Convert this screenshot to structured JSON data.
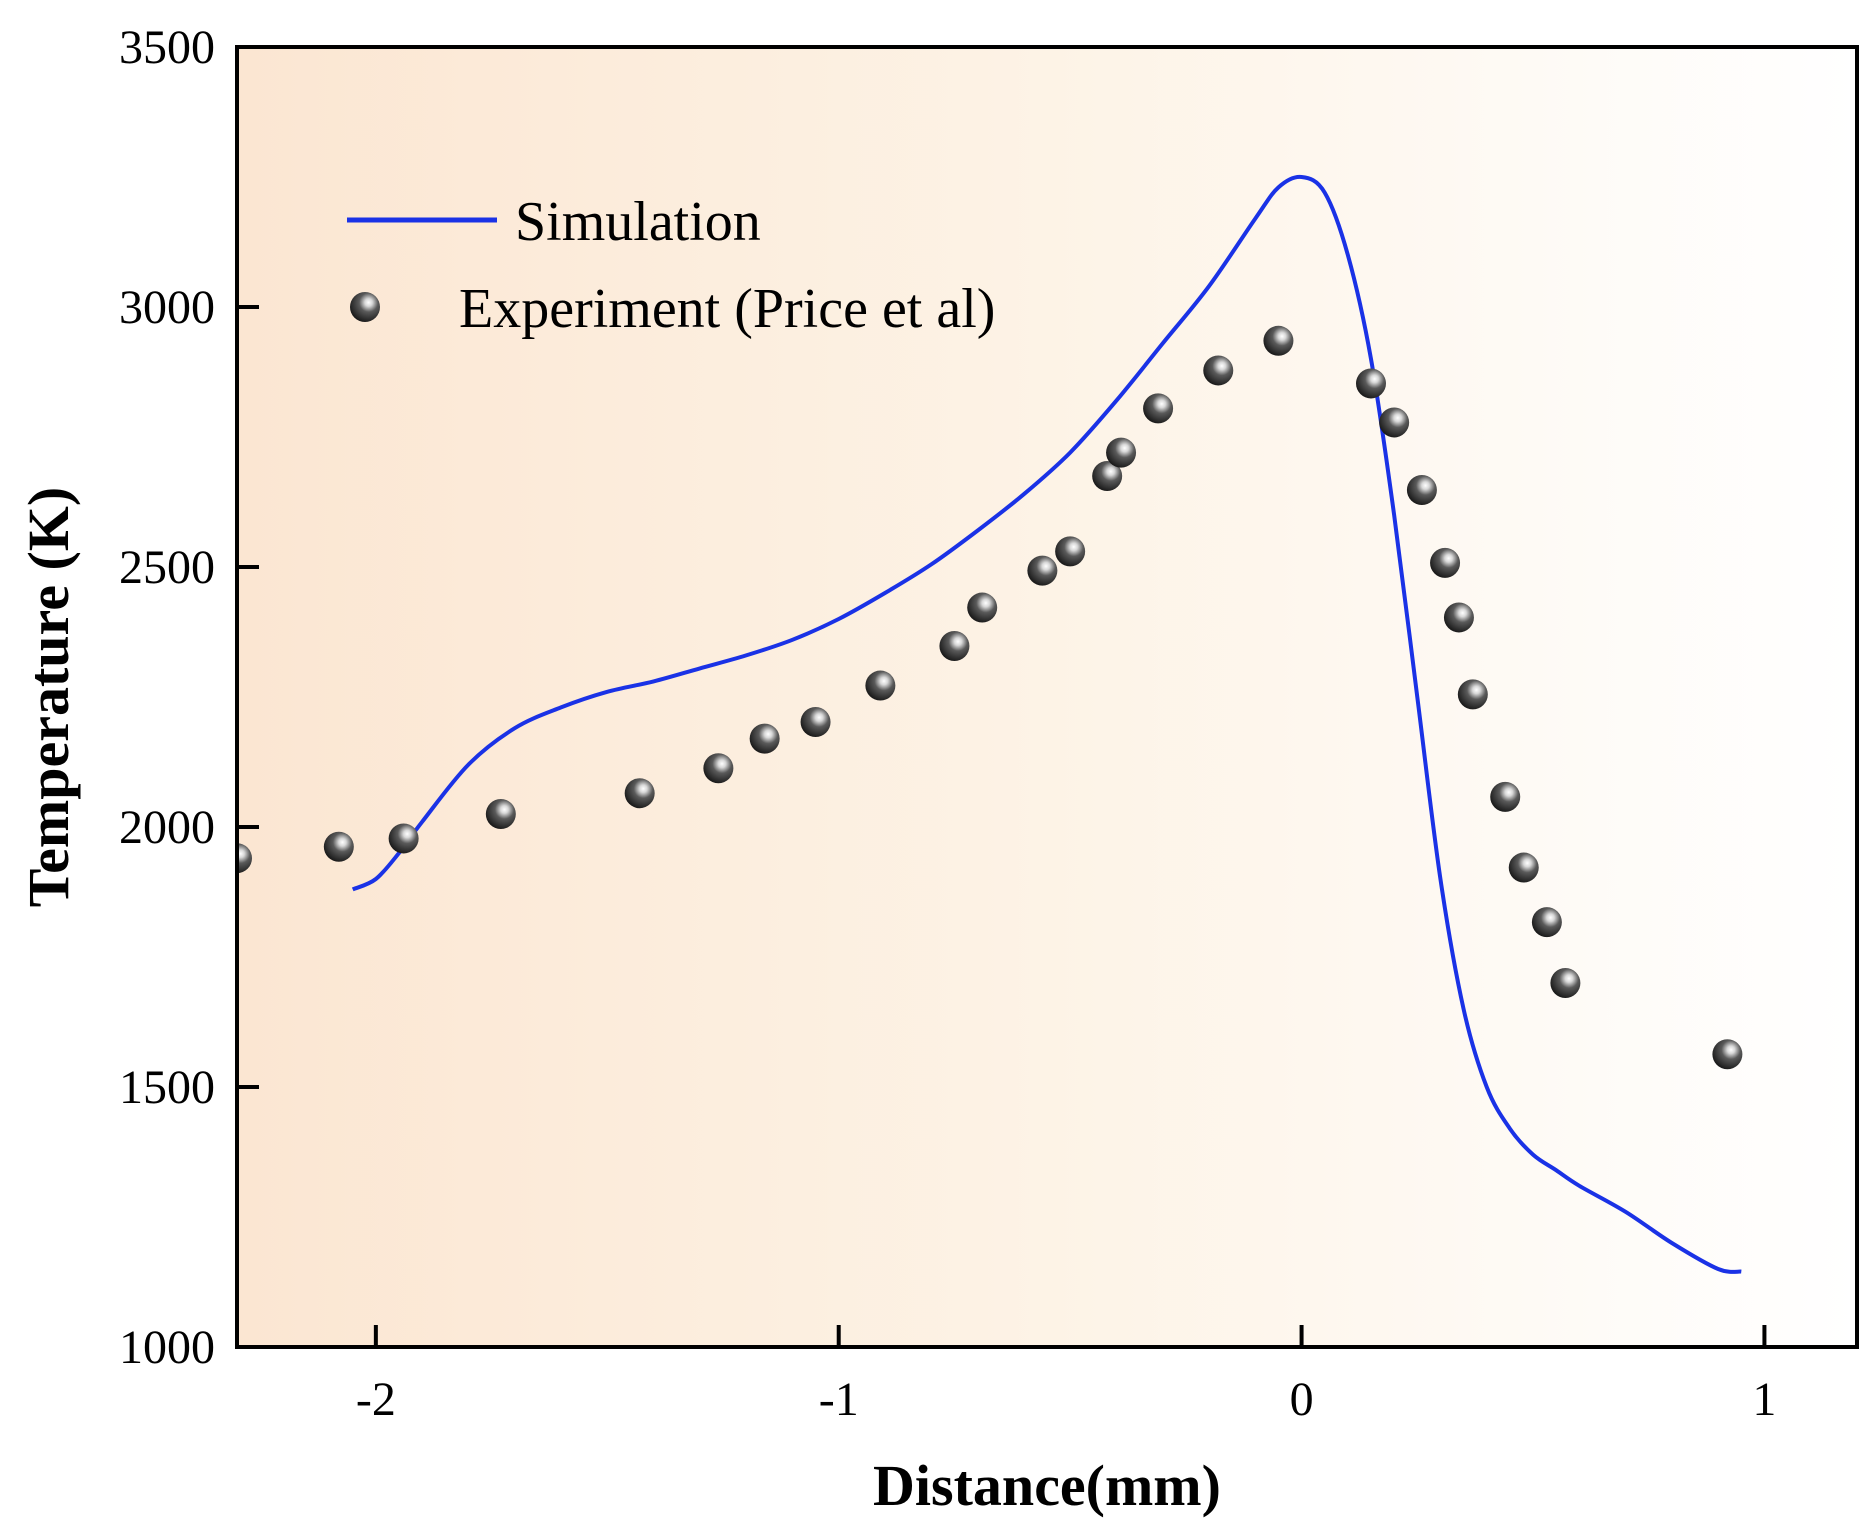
{
  "chart_data": {
    "type": "line",
    "title": "",
    "xlabel": "Distance(mm)",
    "ylabel": "Temperature (K)",
    "xlim": [
      -2.3,
      1.2
    ],
    "ylim": [
      1000,
      3500
    ],
    "xticks": [
      -2,
      -1,
      0,
      1
    ],
    "yticks": [
      1000,
      1500,
      2000,
      2500,
      3000,
      3500
    ],
    "grid": false,
    "legend_position": "top-left",
    "background_gradient": [
      "#fbe6d2",
      "#fdf3e6",
      "#ffffff"
    ],
    "series": [
      {
        "name": "Simulation",
        "kind": "line",
        "color": "#1a32e6",
        "x": [
          -2.05,
          -2.0,
          -1.95,
          -1.9,
          -1.8,
          -1.7,
          -1.6,
          -1.5,
          -1.4,
          -1.3,
          -1.2,
          -1.1,
          -1.0,
          -0.9,
          -0.8,
          -0.7,
          -0.6,
          -0.5,
          -0.4,
          -0.3,
          -0.2,
          -0.1,
          -0.05,
          0.0,
          0.05,
          0.1,
          0.15,
          0.2,
          0.25,
          0.3,
          0.35,
          0.4,
          0.45,
          0.5,
          0.55,
          0.6,
          0.7,
          0.8,
          0.9,
          0.95
        ],
        "y": [
          1880,
          1900,
          1950,
          2010,
          2120,
          2190,
          2230,
          2260,
          2280,
          2305,
          2330,
          2360,
          2400,
          2450,
          2505,
          2570,
          2640,
          2720,
          2820,
          2930,
          3040,
          3170,
          3230,
          3250,
          3220,
          3100,
          2900,
          2600,
          2250,
          1900,
          1650,
          1500,
          1420,
          1370,
          1340,
          1310,
          1260,
          1200,
          1150,
          1145
        ]
      },
      {
        "name": "Experiment (Price et al)",
        "kind": "scatter",
        "color": "#3a3a3a",
        "x": [
          -2.3,
          -2.08,
          -1.94,
          -1.73,
          -1.43,
          -1.26,
          -1.16,
          -1.05,
          -0.91,
          -0.75,
          -0.69,
          -0.56,
          -0.5,
          -0.42,
          -0.39,
          -0.31,
          -0.18,
          -0.05,
          0.15,
          0.2,
          0.26,
          0.31,
          0.34,
          0.37,
          0.44,
          0.48,
          0.53,
          0.57,
          0.92
        ],
        "y": [
          1940,
          1962,
          1978,
          2025,
          2065,
          2113,
          2170,
          2202,
          2272,
          2348,
          2422,
          2493,
          2530,
          2675,
          2720,
          2805,
          2878,
          2935,
          2853,
          2778,
          2648,
          2508,
          2403,
          2255,
          2058,
          1922,
          1817,
          1700,
          1563
        ]
      }
    ]
  }
}
